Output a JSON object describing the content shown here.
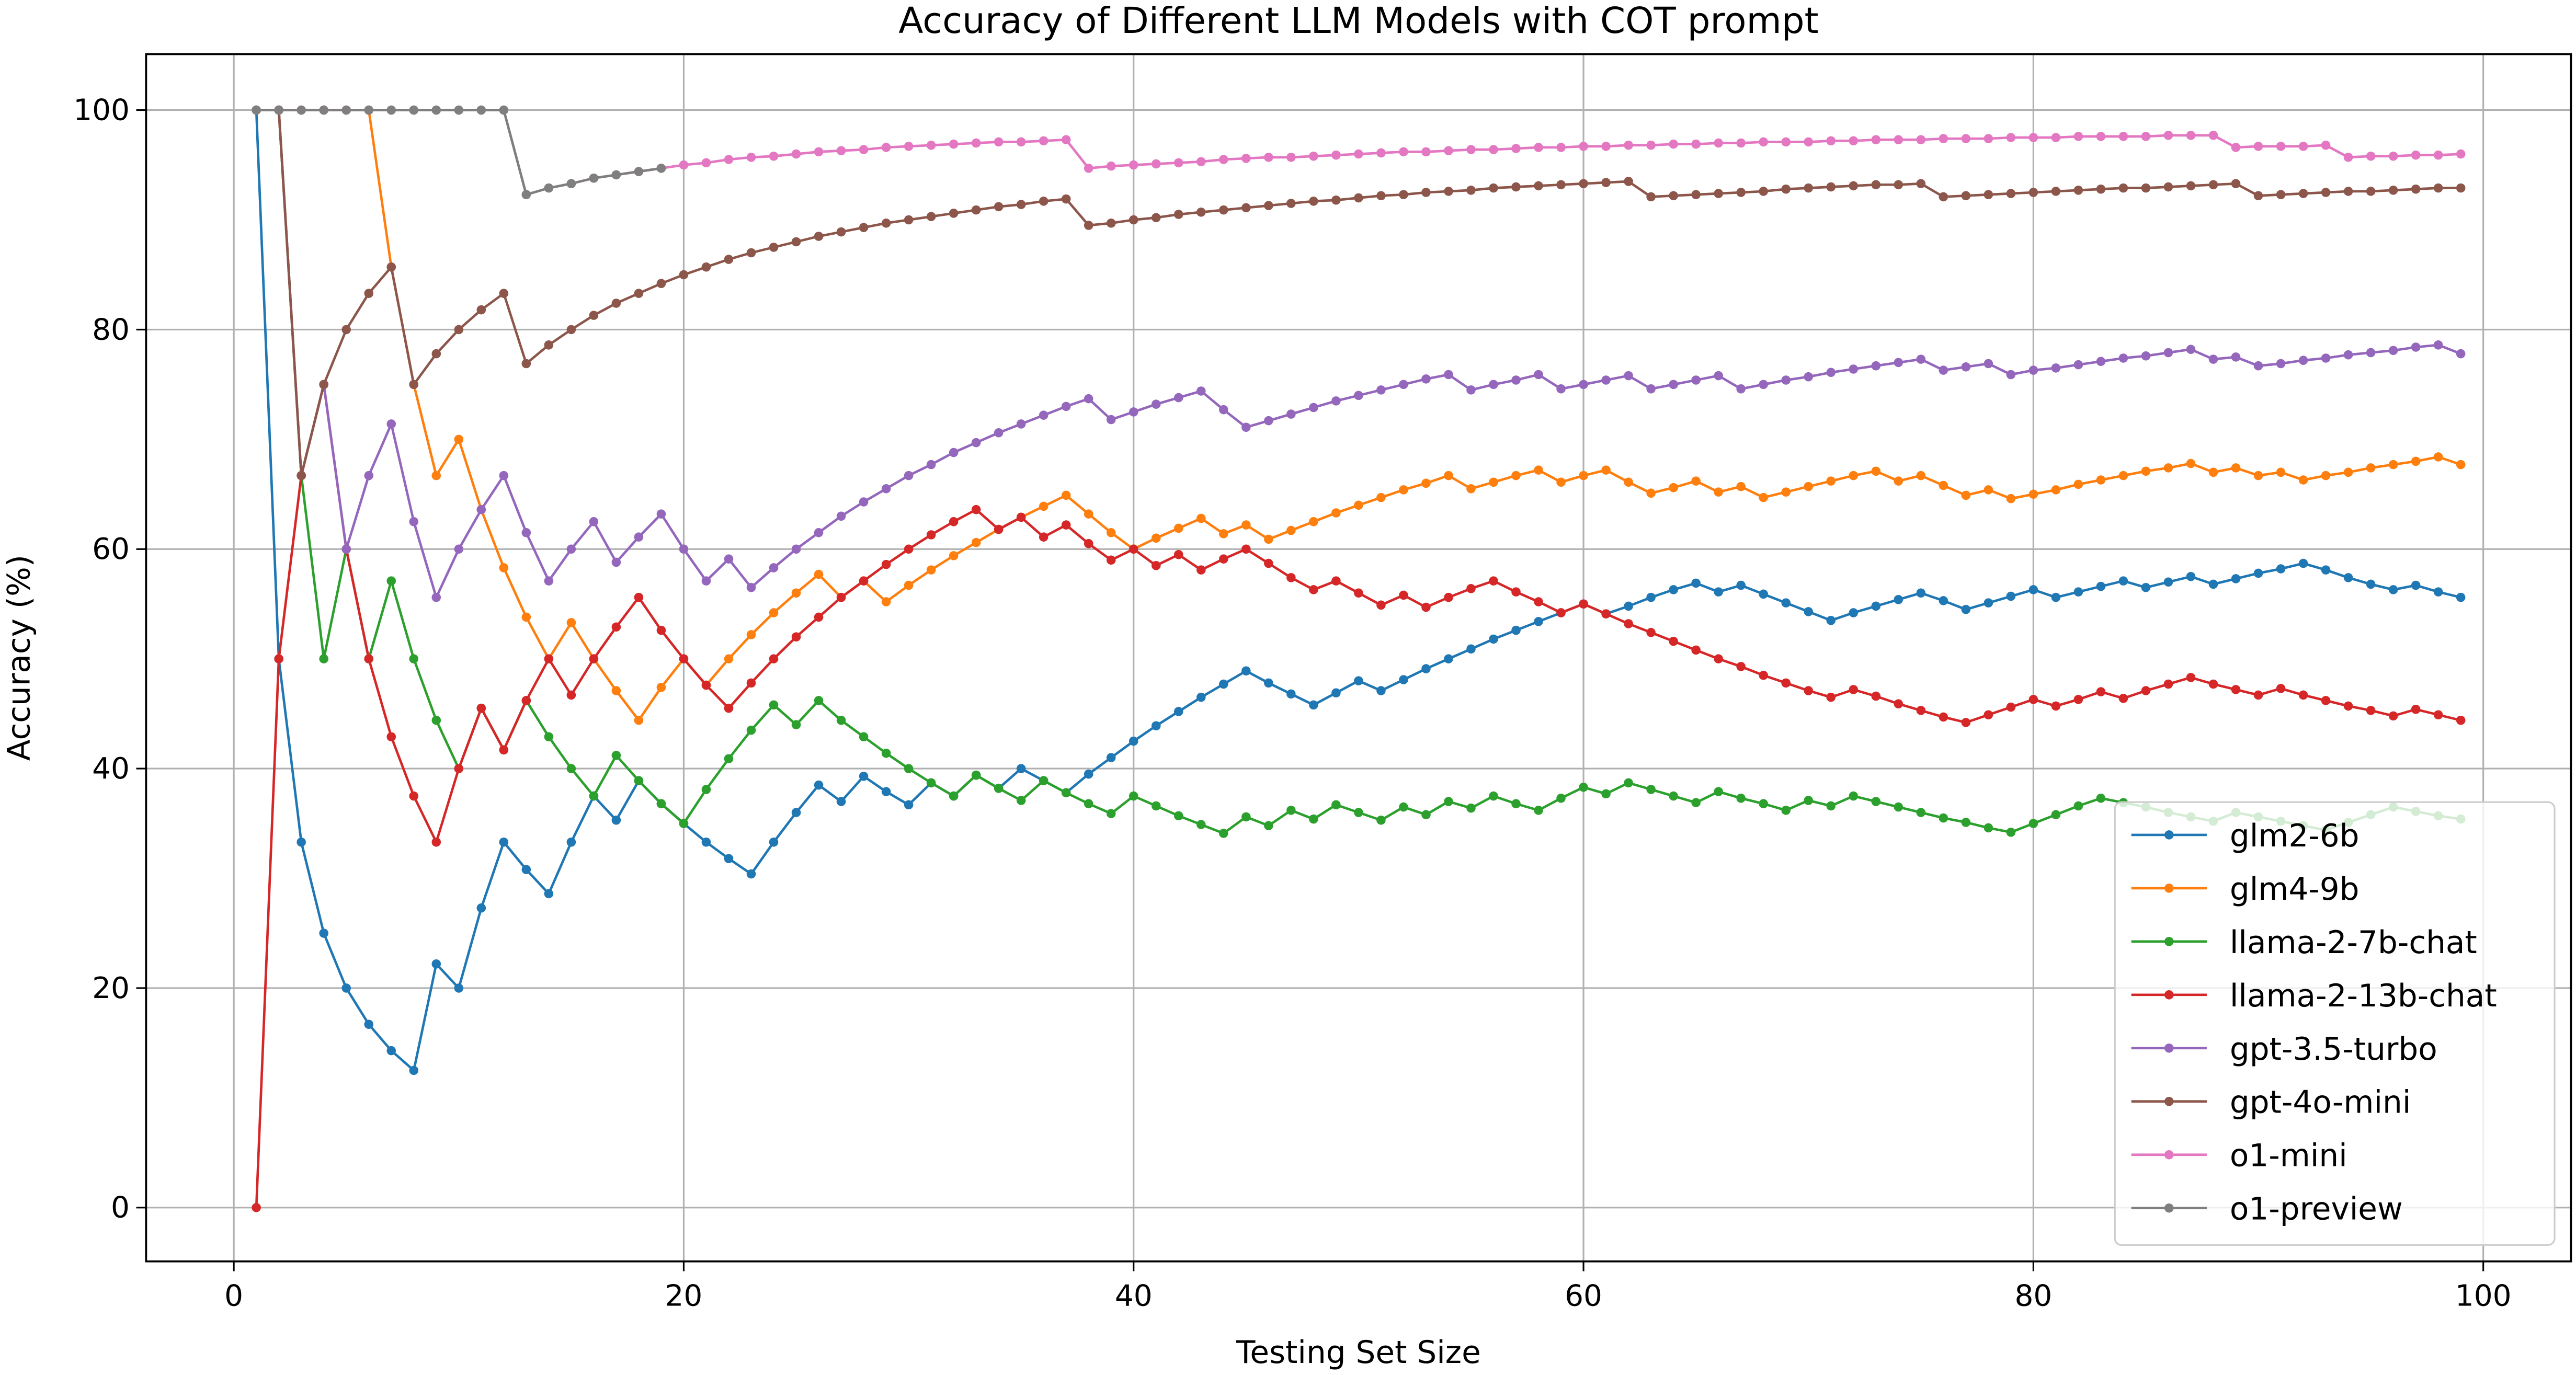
{
  "chart_data": {
    "type": "line",
    "title": "Accuracy of Different LLM Models with COT prompt",
    "xlabel": "Testing Set Size",
    "ylabel": "Accuracy (%)",
    "x": [
      1,
      2,
      3,
      4,
      5,
      6,
      7,
      8,
      9,
      10,
      11,
      12,
      13,
      14,
      15,
      16,
      17,
      18,
      19,
      20,
      21,
      22,
      23,
      24,
      25,
      26,
      27,
      28,
      29,
      30,
      31,
      32,
      33,
      34,
      35,
      36,
      37,
      38,
      39,
      40,
      41,
      42,
      43,
      44,
      45,
      46,
      47,
      48,
      49,
      50,
      51,
      52,
      53,
      54,
      55,
      56,
      57,
      58,
      59,
      60,
      61,
      62,
      63,
      64,
      65,
      66,
      67,
      68,
      69,
      70,
      71,
      72,
      73,
      74,
      75,
      76,
      77,
      78,
      79,
      80,
      81,
      82,
      83,
      84,
      85,
      86,
      87,
      88,
      89,
      90,
      91,
      92,
      93,
      94,
      95,
      96,
      97,
      98,
      99
    ],
    "xlim": [
      -3.9,
      103.9
    ],
    "xticks": [
      0,
      20,
      40,
      60,
      80,
      100
    ],
    "ylim": [
      -4.9,
      105.1
    ],
    "yticks": [
      0,
      20,
      40,
      60,
      80,
      100
    ],
    "grid": true,
    "legend": "lower right",
    "series": [
      {
        "name": "glm2-6b",
        "color": "#1f77b4",
        "values": [
          100,
          50,
          33.3,
          25,
          20,
          16.7,
          14.3,
          12.5,
          22.2,
          20,
          27.3,
          33.3,
          30.8,
          28.6,
          33.3,
          37.5,
          35.3,
          38.9,
          36.8,
          35,
          33.3,
          31.8,
          30.4,
          33.3,
          36,
          38.5,
          37,
          39.3,
          37.9,
          36.7,
          38.7,
          37.5,
          39.4,
          38.2,
          40,
          38.9,
          37.8,
          39.5,
          41,
          42.5,
          43.9,
          45.2,
          46.5,
          47.7,
          48.9,
          47.8,
          46.8,
          45.8,
          46.9,
          48,
          47.1,
          48.1,
          49.1,
          50,
          50.9,
          51.8,
          52.6,
          53.4,
          54.2,
          55,
          54.1,
          54.8,
          55.6,
          56.3,
          56.9,
          56.1,
          56.7,
          55.9,
          55.1,
          54.3,
          53.5,
          54.2,
          54.8,
          55.4,
          56,
          55.3,
          54.5,
          55.1,
          55.7,
          56.3,
          55.6,
          56.1,
          56.6,
          57.1,
          56.5,
          57,
          57.5,
          56.8,
          57.3,
          57.8,
          58.2,
          58.7,
          58.1,
          57.4,
          56.8,
          56.3,
          56.7,
          56.1,
          55.6
        ]
      },
      {
        "name": "glm4-9b",
        "color": "#ff7f0e",
        "values": [
          100,
          100,
          100,
          100,
          100,
          100,
          85.7,
          75,
          66.7,
          70,
          63.6,
          58.3,
          53.8,
          50,
          53.3,
          50,
          47.1,
          44.4,
          47.4,
          50,
          47.6,
          50,
          52.2,
          54.2,
          56,
          57.7,
          55.6,
          57.1,
          55.2,
          56.7,
          58.1,
          59.4,
          60.6,
          61.8,
          62.9,
          63.9,
          64.9,
          63.2,
          61.5,
          60,
          61,
          61.9,
          62.8,
          61.4,
          62.2,
          60.9,
          61.7,
          62.5,
          63.3,
          64,
          64.7,
          65.4,
          66,
          66.7,
          65.5,
          66.1,
          66.7,
          67.2,
          66.1,
          66.7,
          67.2,
          66.1,
          65.1,
          65.6,
          66.2,
          65.2,
          65.7,
          64.7,
          65.2,
          65.7,
          66.2,
          66.7,
          67.1,
          66.2,
          66.7,
          65.8,
          64.9,
          65.4,
          64.6,
          65,
          65.4,
          65.9,
          66.3,
          66.7,
          67.1,
          67.4,
          67.8,
          67,
          67.4,
          66.7,
          67,
          66.3,
          66.7,
          67,
          67.4,
          67.7,
          68,
          68.4,
          67.7
        ]
      },
      {
        "name": "llama-2-7b-chat",
        "color": "#2ca02c",
        "values": [
          100,
          100,
          66.7,
          50,
          60,
          50,
          57.1,
          50,
          44.4,
          40,
          45.5,
          41.7,
          46.2,
          42.9,
          40,
          37.5,
          41.2,
          38.9,
          36.8,
          35,
          38.1,
          40.9,
          43.5,
          45.8,
          44,
          46.2,
          44.4,
          42.9,
          41.4,
          40,
          38.7,
          37.5,
          39.4,
          38.2,
          37.1,
          38.9,
          37.8,
          36.8,
          35.9,
          37.5,
          36.6,
          35.7,
          34.9,
          34.1,
          35.6,
          34.8,
          36.2,
          35.4,
          36.7,
          36,
          35.3,
          36.5,
          35.8,
          37,
          36.4,
          37.5,
          36.8,
          36.2,
          37.3,
          38.3,
          37.7,
          38.7,
          38.1,
          37.5,
          36.9,
          37.9,
          37.3,
          36.8,
          36.2,
          37.1,
          36.6,
          37.5,
          37,
          36.5,
          36,
          35.5,
          35.1,
          34.6,
          34.2,
          35,
          35.8,
          36.6,
          37.3,
          36.9,
          36.5,
          36,
          35.6,
          35.2,
          36,
          35.6,
          35.2,
          34.8,
          34.4,
          35.1,
          35.8,
          36.5,
          36.1,
          35.7,
          35.4
        ]
      },
      {
        "name": "llama-2-13b-chat",
        "color": "#d62728",
        "values": [
          0,
          50,
          66.7,
          75,
          60,
          50,
          42.9,
          37.5,
          33.3,
          40,
          45.5,
          41.7,
          46.2,
          50,
          46.7,
          50,
          52.9,
          55.6,
          52.6,
          50,
          47.6,
          45.5,
          47.8,
          50,
          52,
          53.8,
          55.6,
          57.1,
          58.6,
          60,
          61.3,
          62.5,
          63.6,
          61.8,
          62.9,
          61.1,
          62.2,
          60.5,
          59,
          60,
          58.5,
          59.5,
          58.1,
          59.1,
          60,
          58.7,
          57.4,
          56.3,
          57.1,
          56,
          54.9,
          55.8,
          54.7,
          55.6,
          56.4,
          57.1,
          56.1,
          55.2,
          54.2,
          55,
          54.1,
          53.2,
          52.4,
          51.6,
          50.8,
          50,
          49.3,
          48.5,
          47.8,
          47.1,
          46.5,
          47.2,
          46.6,
          45.9,
          45.3,
          44.7,
          44.2,
          44.9,
          45.6,
          46.3,
          45.7,
          46.3,
          47,
          46.4,
          47.1,
          47.7,
          48.3,
          47.7,
          47.2,
          46.7,
          47.3,
          46.7,
          46.2,
          45.7,
          45.3,
          44.8,
          45.4,
          44.9,
          44.4
        ]
      },
      {
        "name": "gpt-3.5-turbo",
        "color": "#9467bd",
        "values": [
          100,
          100,
          66.7,
          75,
          60,
          66.7,
          71.4,
          62.5,
          55.6,
          60,
          63.6,
          66.7,
          61.5,
          57.1,
          60,
          62.5,
          58.8,
          61.1,
          63.2,
          60,
          57.1,
          59.1,
          56.5,
          58.3,
          60,
          61.5,
          63,
          64.3,
          65.5,
          66.7,
          67.7,
          68.8,
          69.7,
          70.6,
          71.4,
          72.2,
          73,
          73.7,
          71.8,
          72.5,
          73.2,
          73.8,
          74.4,
          72.7,
          71.1,
          71.7,
          72.3,
          72.9,
          73.5,
          74,
          74.5,
          75,
          75.5,
          75.9,
          74.5,
          75,
          75.4,
          75.9,
          74.6,
          75,
          75.4,
          75.8,
          74.6,
          75,
          75.4,
          75.8,
          74.6,
          75,
          75.4,
          75.7,
          76.1,
          76.4,
          76.7,
          77,
          77.3,
          76.3,
          76.6,
          76.9,
          75.9,
          76.3,
          76.5,
          76.8,
          77.1,
          77.4,
          77.6,
          77.9,
          78.2,
          77.3,
          77.5,
          76.7,
          76.9,
          77.2,
          77.4,
          77.7,
          77.9,
          78.1,
          78.4,
          78.6,
          77.8
        ]
      },
      {
        "name": "gpt-4o-mini",
        "color": "#8c564b",
        "values": [
          100,
          100,
          66.7,
          75,
          80,
          83.3,
          85.7,
          75,
          77.8,
          80,
          81.8,
          83.3,
          76.9,
          78.6,
          80,
          81.3,
          82.4,
          83.3,
          84.2,
          85,
          85.7,
          86.4,
          87,
          87.5,
          88,
          88.5,
          88.9,
          89.3,
          89.7,
          90,
          90.3,
          90.6,
          90.9,
          91.2,
          91.4,
          91.7,
          91.9,
          89.5,
          89.7,
          90,
          90.2,
          90.5,
          90.7,
          90.9,
          91.1,
          91.3,
          91.5,
          91.7,
          91.8,
          92,
          92.2,
          92.3,
          92.5,
          92.6,
          92.7,
          92.9,
          93,
          93.1,
          93.2,
          93.3,
          93.4,
          93.5,
          92.1,
          92.2,
          92.3,
          92.4,
          92.5,
          92.6,
          92.8,
          92.9,
          93,
          93.1,
          93.2,
          93.2,
          93.3,
          92.1,
          92.2,
          92.3,
          92.4,
          92.5,
          92.6,
          92.7,
          92.8,
          92.9,
          92.9,
          93,
          93.1,
          93.2,
          93.3,
          92.2,
          92.3,
          92.4,
          92.5,
          92.6,
          92.6,
          92.7,
          92.8,
          92.9,
          92.9
        ]
      },
      {
        "name": "o1-mini",
        "color": "#e377c2",
        "values": [
          100,
          100,
          100,
          100,
          100,
          100,
          100,
          100,
          100,
          100,
          100,
          100,
          92.3,
          92.9,
          93.3,
          93.8,
          94.1,
          94.4,
          94.7,
          95,
          95.2,
          95.5,
          95.7,
          95.8,
          96,
          96.2,
          96.3,
          96.4,
          96.6,
          96.7,
          96.8,
          96.9,
          97,
          97.1,
          97.1,
          97.2,
          97.3,
          94.7,
          94.9,
          95,
          95.1,
          95.2,
          95.3,
          95.5,
          95.6,
          95.7,
          95.7,
          95.8,
          95.9,
          96,
          96.1,
          96.2,
          96.2,
          96.3,
          96.4,
          96.4,
          96.5,
          96.6,
          96.6,
          96.7,
          96.7,
          96.8,
          96.8,
          96.9,
          96.9,
          97,
          97,
          97.1,
          97.1,
          97.1,
          97.2,
          97.2,
          97.3,
          97.3,
          97.3,
          97.4,
          97.4,
          97.4,
          97.5,
          97.5,
          97.5,
          97.6,
          97.6,
          97.6,
          97.6,
          97.7,
          97.7,
          97.7,
          96.6,
          96.7,
          96.7,
          96.7,
          96.8,
          95.7,
          95.8,
          95.8,
          95.9,
          95.9,
          96
        ]
      },
      {
        "name": "o1-preview",
        "color": "#7f7f7f",
        "values": [
          100,
          100,
          100,
          100,
          100,
          100,
          100,
          100,
          100,
          100,
          100,
          100,
          92.3,
          92.9,
          93.3,
          93.8,
          94.1,
          94.4,
          94.7,
          null,
          null,
          null,
          null,
          null,
          null,
          null,
          null,
          null,
          null,
          null,
          null,
          null,
          null,
          null,
          null,
          null,
          null,
          null,
          null,
          null,
          null,
          null,
          null,
          null,
          null,
          null,
          null,
          null,
          null,
          null,
          null,
          null,
          null,
          null,
          null,
          null,
          null,
          null,
          null,
          null,
          null,
          null,
          null,
          null,
          null,
          null,
          null,
          null,
          null,
          null,
          null,
          null,
          null,
          null,
          null,
          null,
          null,
          null,
          null,
          null,
          null,
          null,
          null,
          null,
          null,
          null,
          null,
          null,
          null,
          null,
          null,
          null,
          null,
          null,
          null,
          null,
          null,
          null,
          null
        ]
      }
    ]
  }
}
